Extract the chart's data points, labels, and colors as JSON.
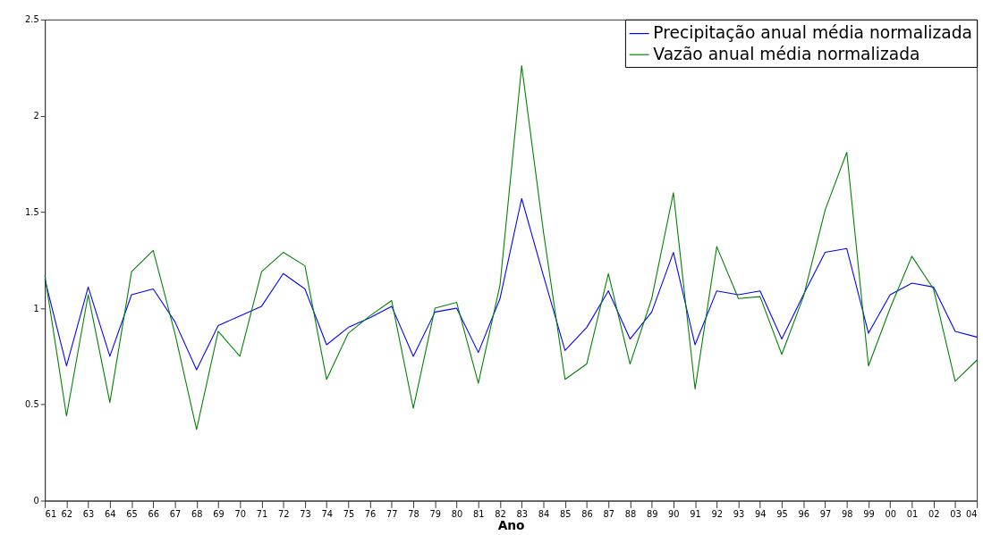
{
  "chart_data": {
    "type": "line",
    "xlabel": "Ano",
    "categories": [
      "61",
      "62",
      "63",
      "64",
      "65",
      "66",
      "67",
      "68",
      "69",
      "70",
      "71",
      "72",
      "73",
      "74",
      "75",
      "76",
      "77",
      "78",
      "79",
      "80",
      "81",
      "82",
      "83",
      "84",
      "85",
      "86",
      "87",
      "88",
      "89",
      "90",
      "91",
      "92",
      "93",
      "94",
      "95",
      "96",
      "97",
      "98",
      "99",
      "00",
      "01",
      "02",
      "03",
      "04"
    ],
    "series": [
      {
        "name": "Precipitação anual média normalizada",
        "color": "#0000ff",
        "values": [
          1.15,
          0.7,
          1.11,
          0.75,
          1.07,
          1.1,
          0.93,
          0.68,
          0.91,
          0.96,
          1.01,
          1.18,
          1.1,
          0.81,
          0.9,
          0.95,
          1.01,
          0.75,
          0.98,
          1.0,
          0.77,
          1.05,
          1.57,
          1.17,
          0.78,
          0.9,
          1.09,
          0.84,
          0.98,
          1.29,
          0.81,
          1.09,
          1.07,
          1.09,
          0.84,
          1.07,
          1.29,
          1.31,
          0.87,
          1.07,
          1.13,
          1.11,
          0.88,
          0.85
        ]
      },
      {
        "name": "Vazão anual média normalizada",
        "color": "#008000",
        "values": [
          1.17,
          0.44,
          1.07,
          0.51,
          1.19,
          1.3,
          0.87,
          0.37,
          0.88,
          0.75,
          1.19,
          1.29,
          1.22,
          0.63,
          0.87,
          0.96,
          1.04,
          0.48,
          1.0,
          1.03,
          0.61,
          1.12,
          2.26,
          1.4,
          0.63,
          0.71,
          1.18,
          0.71,
          1.05,
          1.6,
          0.58,
          1.32,
          1.05,
          1.06,
          0.76,
          1.06,
          1.51,
          1.81,
          0.7,
          1.0,
          1.27,
          1.1,
          0.62,
          0.73
        ]
      }
    ],
    "ylim": [
      0,
      2.5
    ],
    "yticks": [
      0,
      0.5,
      1,
      1.5,
      2,
      2.5
    ],
    "grid": false,
    "legend": "top right",
    "marker": "none",
    "line_style": "solid"
  }
}
